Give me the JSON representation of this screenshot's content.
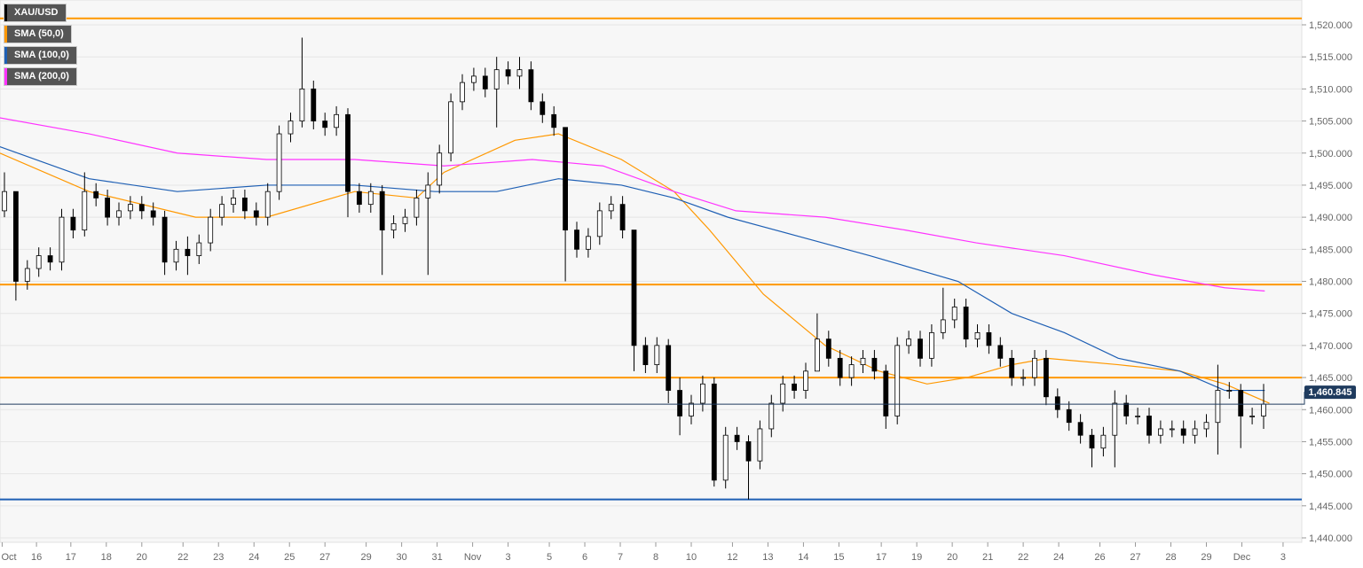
{
  "chart_data": {
    "type": "candlestick",
    "symbol": "XAU/USD",
    "legend": [
      {
        "label": "XAU/USD",
        "color": "#000000"
      },
      {
        "label": "SMA (50,0)",
        "color": "#ff9800"
      },
      {
        "label": "SMA (100,0)",
        "color": "#1e5fb4"
      },
      {
        "label": "SMA (200,0)",
        "color": "#ff33ff"
      }
    ],
    "ylim": [
      1440,
      1520
    ],
    "yticks": [
      "1,440.000",
      "1,445.000",
      "1,450.000",
      "1,455.000",
      "1,460.000",
      "1,465.000",
      "1,470.000",
      "1,475.000",
      "1,480.000",
      "1,485.000",
      "1,490.000",
      "1,495.000",
      "1,500.000",
      "1,505.000",
      "1,510.000",
      "1,515.000",
      "1,520.000"
    ],
    "ytick_values": [
      1440,
      1445,
      1450,
      1455,
      1460,
      1465,
      1470,
      1475,
      1480,
      1485,
      1490,
      1495,
      1500,
      1505,
      1510,
      1515,
      1520
    ],
    "xticks": [
      {
        "label": "Oct",
        "i": -0.2
      },
      {
        "label": "16",
        "i": 2.8
      },
      {
        "label": "17",
        "i": 5.8
      },
      {
        "label": "18",
        "i": 8.9
      },
      {
        "label": "20",
        "i": 12
      },
      {
        "label": "22",
        "i": 15.6
      },
      {
        "label": "23",
        "i": 18.7
      },
      {
        "label": "24",
        "i": 21.8
      },
      {
        "label": "25",
        "i": 24.9
      },
      {
        "label": "27",
        "i": 28
      },
      {
        "label": "29",
        "i": 31.6
      },
      {
        "label": "30",
        "i": 34.7
      },
      {
        "label": "31",
        "i": 37.8
      },
      {
        "label": "Nov",
        "i": 40.9
      },
      {
        "label": "3",
        "i": 44
      },
      {
        "label": "5",
        "i": 47.6
      },
      {
        "label": "6",
        "i": 50.7
      },
      {
        "label": "7",
        "i": 53.8
      },
      {
        "label": "8",
        "i": 56.9
      },
      {
        "label": "10",
        "i": 60
      },
      {
        "label": "12",
        "i": 63.6
      },
      {
        "label": "13",
        "i": 66.7
      },
      {
        "label": "14",
        "i": 69.8
      },
      {
        "label": "15",
        "i": 72.9
      },
      {
        "label": "17",
        "i": 76.6
      },
      {
        "label": "19",
        "i": 79.7
      },
      {
        "label": "20",
        "i": 82.8
      },
      {
        "label": "21",
        "i": 85.9
      },
      {
        "label": "22",
        "i": 89
      },
      {
        "label": "24",
        "i": 92.1
      },
      {
        "label": "26",
        "i": 95.7
      },
      {
        "label": "27",
        "i": 98.8
      },
      {
        "label": "28",
        "i": 101.9
      },
      {
        "label": "29",
        "i": 105
      },
      {
        "label": "Dec",
        "i": 108.1
      },
      {
        "label": "3",
        "i": 111.7
      }
    ],
    "first_open": 1491,
    "close": [
      1494,
      1480,
      1482,
      1484,
      1483,
      1490,
      1488,
      1494,
      1493,
      1490,
      1491,
      1492,
      1491,
      1490,
      1483,
      1485,
      1484,
      1486,
      1490,
      1492,
      1493,
      1491,
      1490,
      1494,
      1503,
      1505,
      1510,
      1505,
      1504,
      1506,
      1494,
      1492,
      1494,
      1488,
      1489,
      1490,
      1493,
      1495,
      1500,
      1508,
      1511,
      1512,
      1510,
      1513,
      1512,
      1513,
      1508,
      1506,
      1504,
      1488,
      1485,
      1487,
      1491,
      1492,
      1488,
      1470,
      1467,
      1470,
      1463,
      1459,
      1461,
      1464,
      1449,
      1456,
      1455,
      1452,
      1457,
      1461,
      1464,
      1463,
      1466,
      1471,
      1468,
      1465,
      1467,
      1468,
      1466,
      1459,
      1470,
      1471,
      1468,
      1472,
      1474,
      1476,
      1471,
      1472,
      1470,
      1468,
      1465,
      1465,
      1468,
      1462,
      1460,
      1458,
      1456,
      1454,
      1456,
      1461,
      1459,
      1459,
      1456,
      1457,
      1457,
      1456,
      1457,
      1458,
      1463,
      1463,
      1459,
      1459,
      1460.845
    ],
    "wick_extremes": {
      "0": [
        1497,
        1490
      ],
      "1": [
        1494,
        1477
      ],
      "7": [
        1497,
        1487
      ],
      "14": [
        1491,
        1481
      ],
      "16": [
        1487,
        1481
      ],
      "26": [
        1518,
        1504
      ],
      "30": [
        1507,
        1490
      ],
      "33": [
        1495,
        1481
      ],
      "37": [
        1497,
        1481
      ],
      "43": [
        1515,
        1504
      ],
      "45": [
        1515,
        1510
      ],
      "49": [
        1504,
        1480
      ],
      "55": [
        1488,
        1466
      ],
      "58": [
        1471,
        1461
      ],
      "59": [
        1465,
        1456
      ],
      "62": [
        1465,
        1448
      ],
      "65": [
        1456,
        1446
      ],
      "71": [
        1475,
        1466
      ],
      "77": [
        1467,
        1457
      ],
      "82": [
        1479,
        1471
      ],
      "95": [
        1457,
        1451
      ],
      "97": [
        1463,
        1451
      ],
      "106": [
        1467,
        1453
      ],
      "108": [
        1464,
        1454
      ],
      "110": [
        1464,
        1457
      ]
    },
    "sma50": [
      [
        -0.4,
        1500
      ],
      [
        7.4,
        1494
      ],
      [
        16.7,
        1490
      ],
      [
        22.9,
        1490
      ],
      [
        30.6,
        1494
      ],
      [
        36,
        1493
      ],
      [
        38.4,
        1497
      ],
      [
        44.6,
        1502
      ],
      [
        48.4,
        1503
      ],
      [
        53.9,
        1499
      ],
      [
        58.5,
        1494
      ],
      [
        61.6,
        1488
      ],
      [
        66.3,
        1478
      ],
      [
        71.7,
        1470
      ],
      [
        76.4,
        1466
      ],
      [
        80.6,
        1464
      ],
      [
        84.1,
        1465
      ],
      [
        88,
        1467
      ],
      [
        91.1,
        1468
      ],
      [
        97.3,
        1467
      ],
      [
        102.7,
        1466
      ],
      [
        106.6,
        1464
      ],
      [
        110.5,
        1461
      ]
    ],
    "sma100": [
      [
        -0.4,
        1501
      ],
      [
        7.4,
        1496
      ],
      [
        15.1,
        1494
      ],
      [
        22.9,
        1495
      ],
      [
        30.6,
        1495
      ],
      [
        37.6,
        1494
      ],
      [
        43,
        1494
      ],
      [
        48.4,
        1496
      ],
      [
        53.9,
        1495
      ],
      [
        58.5,
        1493
      ],
      [
        63.2,
        1490
      ],
      [
        69.4,
        1487
      ],
      [
        75.6,
        1484
      ],
      [
        83.3,
        1480
      ],
      [
        88,
        1475
      ],
      [
        92.6,
        1472
      ],
      [
        97.3,
        1468
      ],
      [
        102.7,
        1466
      ],
      [
        106.6,
        1463
      ],
      [
        110.1,
        1463
      ]
    ],
    "sma200": [
      [
        -0.4,
        1505.5
      ],
      [
        7.4,
        1503
      ],
      [
        15.1,
        1500
      ],
      [
        22.9,
        1499
      ],
      [
        30.6,
        1499
      ],
      [
        38.4,
        1498
      ],
      [
        46.1,
        1499
      ],
      [
        52.3,
        1498
      ],
      [
        58.5,
        1494
      ],
      [
        63.9,
        1491
      ],
      [
        71.7,
        1490
      ],
      [
        78.7,
        1488
      ],
      [
        84.9,
        1486
      ],
      [
        92.6,
        1484
      ],
      [
        100.4,
        1481
      ],
      [
        106.6,
        1479
      ],
      [
        110.1,
        1478.5
      ]
    ],
    "hlines": [
      {
        "value": 1521,
        "color": "#ff9800"
      },
      {
        "value": 1479.5,
        "color": "#ff9800"
      },
      {
        "value": 1465,
        "color": "#ff9800"
      },
      {
        "value": 1446,
        "color": "#1e5fb4"
      }
    ],
    "last_price": {
      "value": 1460.845,
      "label": "1,460.845",
      "color": "#1f3b5e"
    }
  }
}
